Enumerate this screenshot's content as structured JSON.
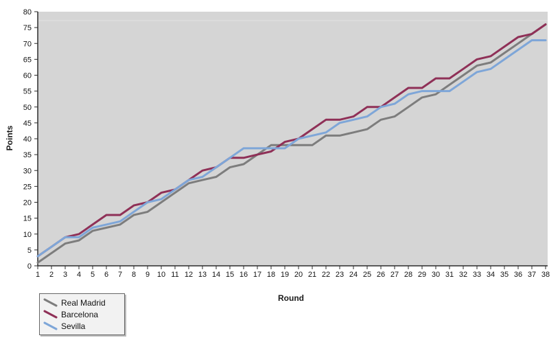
{
  "chart_data": {
    "type": "line",
    "title": "",
    "xlabel": "Round",
    "ylabel": "Points",
    "ylim": [
      0,
      80
    ],
    "y_tick_step": 5,
    "y_ticks": [
      0,
      5,
      10,
      15,
      20,
      25,
      30,
      35,
      40,
      45,
      50,
      55,
      60,
      65,
      70,
      75,
      80
    ],
    "x": [
      1,
      2,
      3,
      4,
      5,
      6,
      7,
      8,
      9,
      10,
      11,
      12,
      13,
      14,
      15,
      16,
      17,
      18,
      19,
      20,
      21,
      22,
      23,
      24,
      25,
      26,
      27,
      28,
      29,
      30,
      31,
      32,
      33,
      34,
      35,
      36,
      37,
      38
    ],
    "series": [
      {
        "name": "Real Madrid",
        "color": "#7d7d7d",
        "values": [
          1,
          4,
          7,
          8,
          11,
          12,
          13,
          16,
          17,
          20,
          23,
          26,
          27,
          28,
          31,
          32,
          35,
          38,
          38,
          38,
          38,
          41,
          41,
          42,
          43,
          46,
          47,
          50,
          53,
          54,
          57,
          60,
          63,
          64,
          67,
          70,
          73,
          76
        ]
      },
      {
        "name": "Barcelona",
        "color": "#8f3057",
        "values": [
          3,
          6,
          9,
          10,
          13,
          16,
          16,
          19,
          20,
          23,
          24,
          27,
          30,
          31,
          34,
          34,
          35,
          36,
          39,
          40,
          43,
          46,
          46,
          47,
          50,
          50,
          53,
          56,
          56,
          59,
          59,
          62,
          65,
          66,
          69,
          72,
          73,
          76
        ]
      },
      {
        "name": "Sevilla",
        "color": "#7ea6d8",
        "values": [
          3,
          6,
          9,
          9,
          12,
          13,
          14,
          17,
          20,
          21,
          24,
          27,
          28,
          31,
          34,
          37,
          37,
          37,
          37,
          40,
          41,
          42,
          45,
          46,
          47,
          50,
          51,
          54,
          55,
          55,
          55,
          58,
          61,
          62,
          65,
          68,
          71,
          71
        ]
      }
    ],
    "legend_position": "bottom-left",
    "grid": false,
    "plot_bg": "#d5d5d5",
    "plot_top_highlight": "#e2e2e2",
    "axis_color": "#2b2b2b",
    "tick_label_color": "#111111"
  }
}
